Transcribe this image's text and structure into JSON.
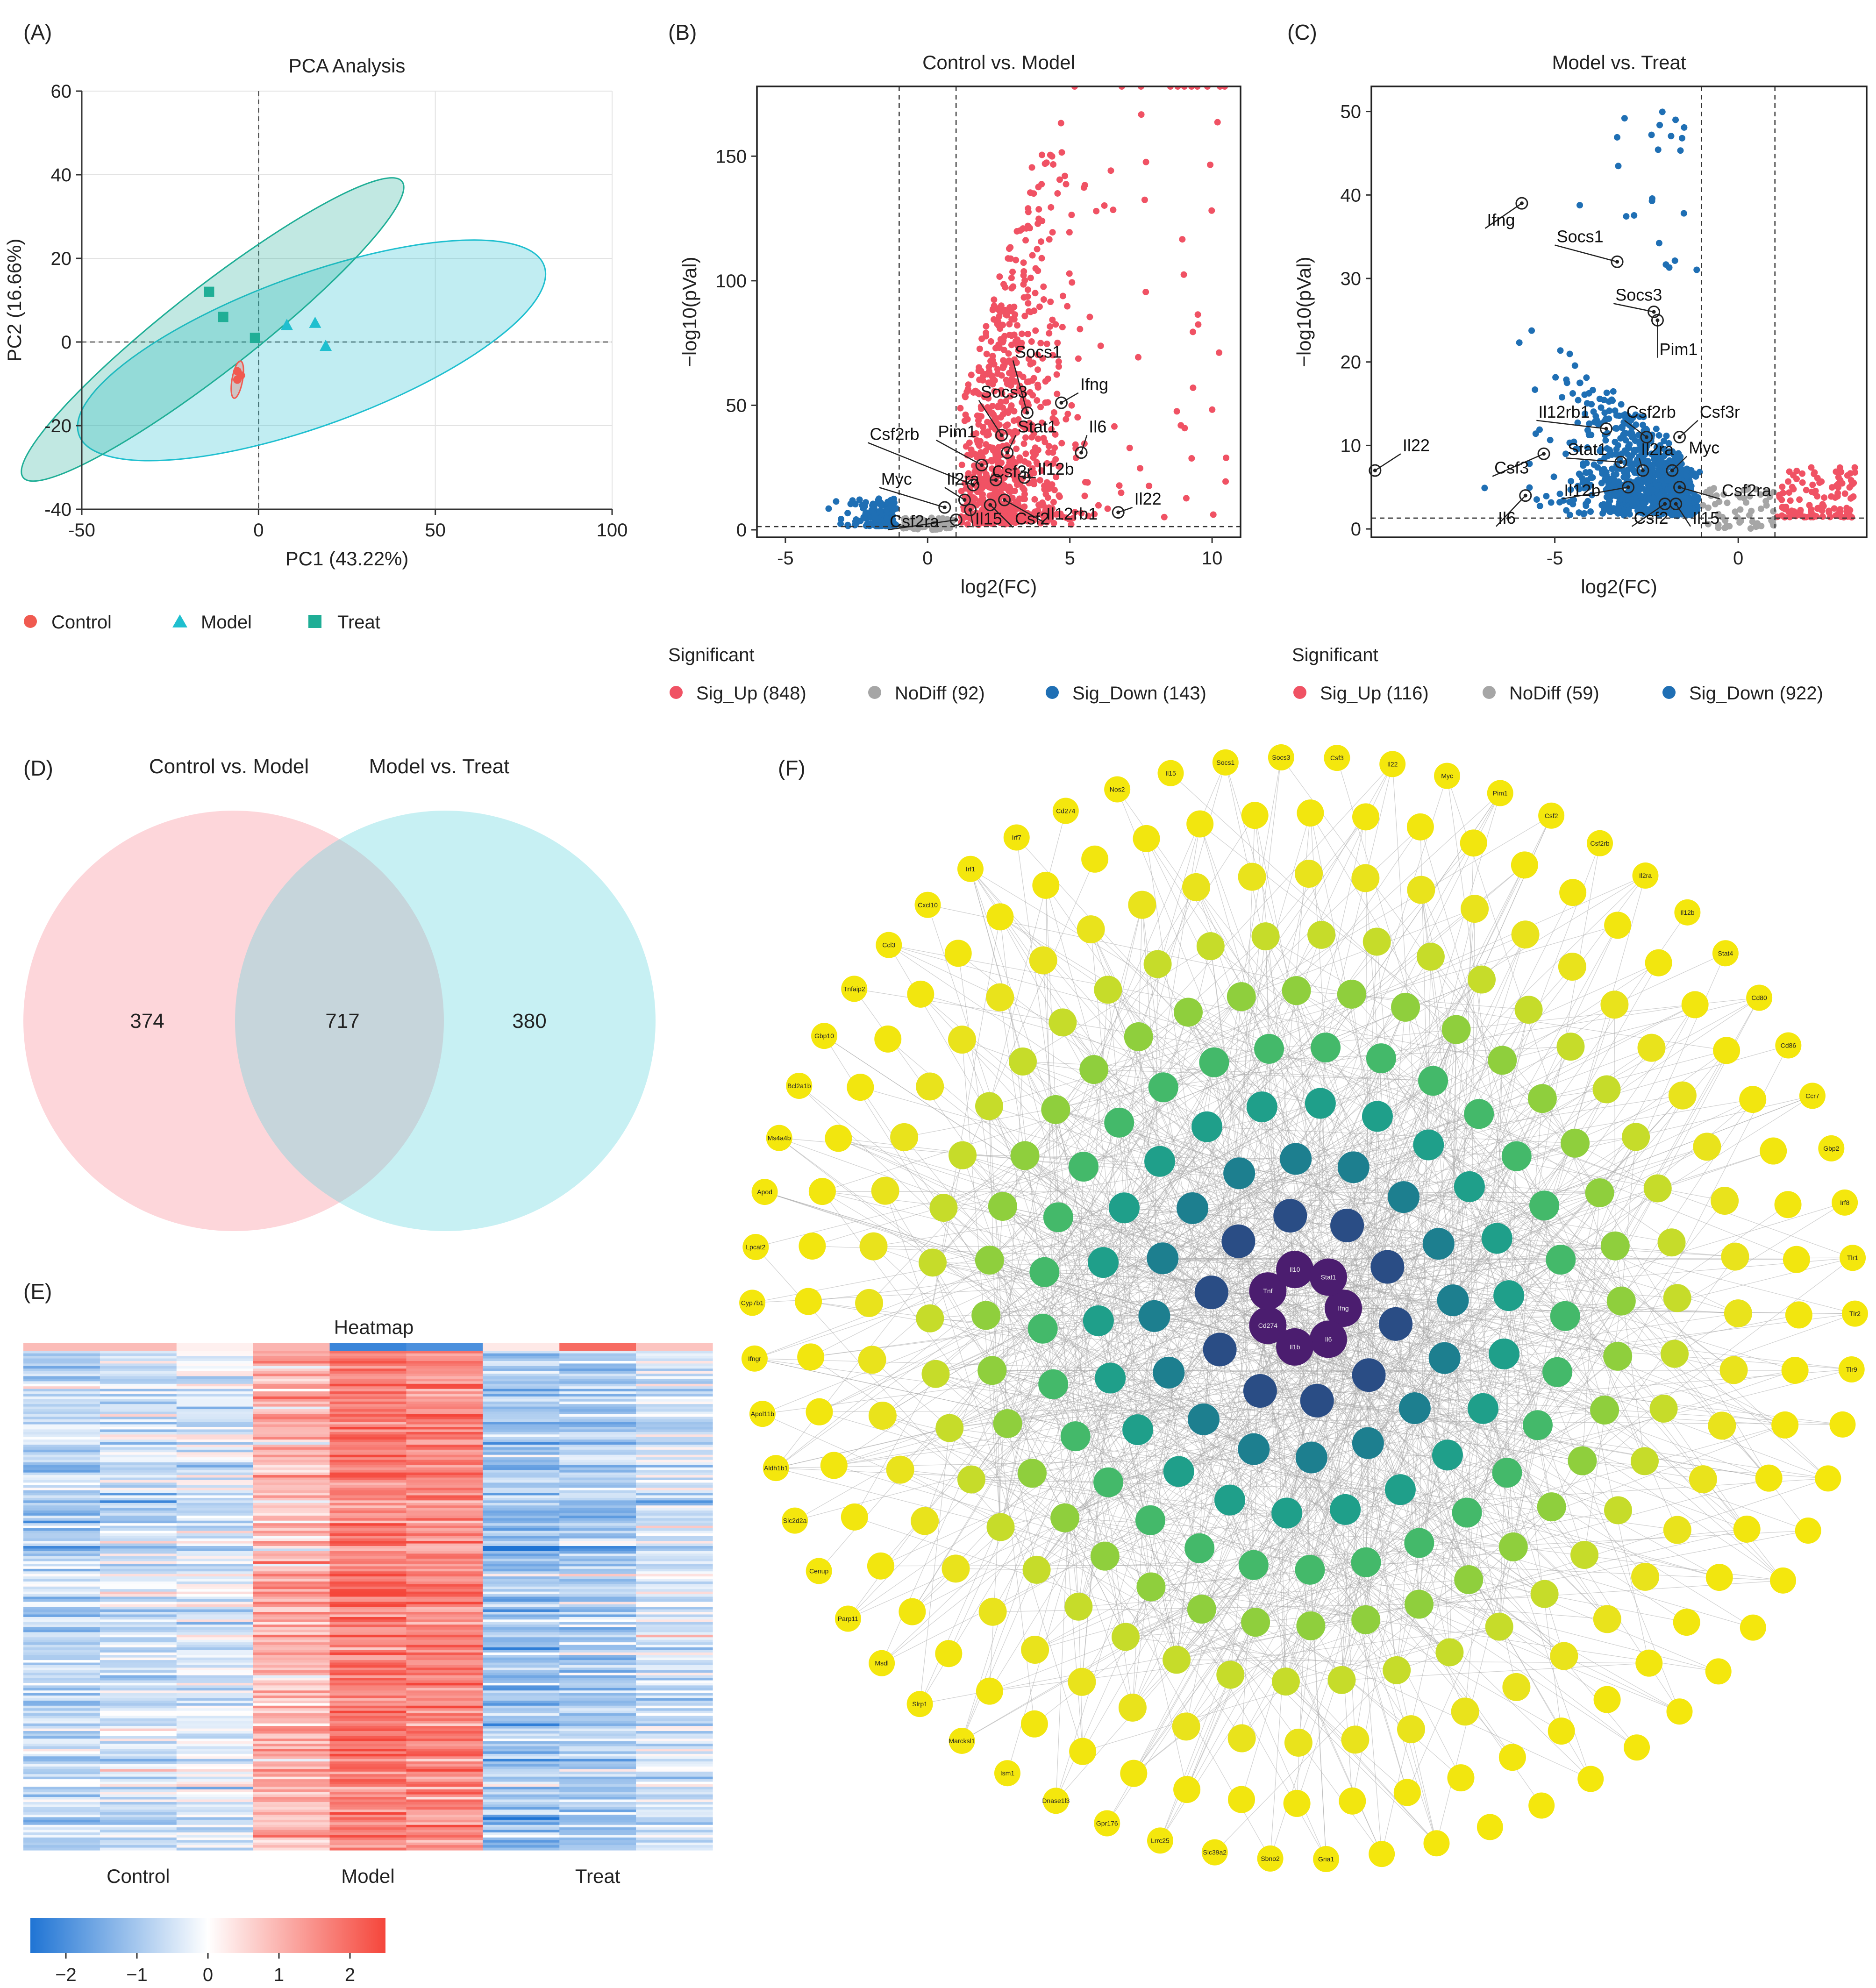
{
  "panels": {
    "A": {
      "label": "(A)",
      "legend": [
        {
          "name": "Control",
          "shape": "circle",
          "color": "#f05a50"
        },
        {
          "name": "Model",
          "shape": "triangle",
          "color": "#1fbfcf"
        },
        {
          "name": "Treat",
          "shape": "square",
          "color": "#1fae96"
        }
      ]
    },
    "B": {
      "label": "(B)",
      "legend_title": "Significant",
      "legend": [
        {
          "name": "Sig_Up (848)",
          "color": "#f05264"
        },
        {
          "name": "NoDiff (92)",
          "color": "#a6a6a6"
        },
        {
          "name": "Sig_Down (143)",
          "color": "#1f6fb4"
        }
      ]
    },
    "C": {
      "label": "(C)",
      "legend_title": "Significant",
      "legend": [
        {
          "name": "Sig_Up (116)",
          "color": "#f05264"
        },
        {
          "name": "NoDiff (59)",
          "color": "#a6a6a6"
        },
        {
          "name": "Sig_Down (922)",
          "color": "#1f6fb4"
        }
      ]
    },
    "D": {
      "label": "(D)"
    },
    "E": {
      "label": "(E)"
    },
    "F": {
      "label": "(F)"
    }
  },
  "chart_data": [
    {
      "id": "pca",
      "type": "scatter",
      "title": "PCA Analysis",
      "xlabel": "PC1 (43.22%)",
      "ylabel": "PC2 (16.66%)",
      "xlim": [
        -50,
        100
      ],
      "ylim": [
        -40,
        60
      ],
      "xticks": [
        -50,
        0,
        50,
        100
      ],
      "yticks": [
        -40,
        -20,
        0,
        20,
        40,
        60
      ],
      "series": [
        {
          "name": "Control",
          "color": "#f05a50",
          "points": [
            [
              -6,
              -7
            ],
            [
              -6,
              -9
            ],
            [
              -5,
              -8
            ]
          ],
          "ellipse": {
            "cx": -6,
            "cy": -9,
            "rx": 1.5,
            "ry": 4.5,
            "angle": 10
          }
        },
        {
          "name": "Model",
          "color": "#1fbfcf",
          "points": [
            [
              8,
              4
            ],
            [
              16,
              4.5
            ],
            [
              19,
              -1
            ]
          ],
          "ellipse": {
            "cx": 15,
            "cy": -2,
            "rx": 70,
            "ry": 18,
            "angle": -20
          }
        },
        {
          "name": "Treat",
          "color": "#1fae96",
          "points": [
            [
              -14,
              12
            ],
            [
              -10,
              6
            ],
            [
              -1,
              1
            ]
          ],
          "ellipse": {
            "cx": -13,
            "cy": 3,
            "rx": 68,
            "ry": 10,
            "angle": -38
          }
        }
      ]
    },
    {
      "id": "volcano_b",
      "type": "scatter",
      "title": "Control vs. Model",
      "xlabel": "log2(FC)",
      "ylabel": "−log10(pVal)",
      "xlim": [
        -6,
        11
      ],
      "ylim": [
        -3,
        178
      ],
      "xticks": [
        -5,
        0,
        5,
        10
      ],
      "yticks": [
        0,
        50,
        100,
        150
      ],
      "vlines": [
        -1,
        1
      ],
      "hline": 1.3,
      "counts": {
        "up": 848,
        "nodiff": 92,
        "down": 143
      },
      "labels": [
        {
          "gene": "Socs1",
          "x": 3.5,
          "y": 47,
          "tx": 3.0,
          "ty": 68
        },
        {
          "gene": "Ifng",
          "x": 4.7,
          "y": 51,
          "tx": 5.3,
          "ty": 55
        },
        {
          "gene": "Socs3",
          "x": 2.6,
          "y": 38,
          "tx": 1.8,
          "ty": 52
        },
        {
          "gene": "Stat1",
          "x": 2.8,
          "y": 31,
          "tx": 3.1,
          "ty": 38
        },
        {
          "gene": "Il6",
          "x": 5.4,
          "y": 31,
          "tx": 5.6,
          "ty": 38
        },
        {
          "gene": "Csf2rb",
          "x": 1.6,
          "y": 18,
          "tx": -2.1,
          "ty": 35
        },
        {
          "gene": "Pim1",
          "x": 1.9,
          "y": 26,
          "tx": 0.3,
          "ty": 36
        },
        {
          "gene": "Csf3r",
          "x": 2.4,
          "y": 20,
          "tx": 2.2,
          "ty": 20
        },
        {
          "gene": "Il12b",
          "x": 3.4,
          "y": 21,
          "tx": 3.8,
          "ty": 21
        },
        {
          "gene": "Il2ra",
          "x": 1.3,
          "y": 12,
          "tx": 0.6,
          "ty": 17
        },
        {
          "gene": "Myc",
          "x": 0.6,
          "y": 9,
          "tx": -1.7,
          "ty": 17
        },
        {
          "gene": "Il12rb1",
          "x": 2.7,
          "y": 12,
          "tx": 4.1,
          "ty": 3
        },
        {
          "gene": "Il22",
          "x": 6.7,
          "y": 7,
          "tx": 7.2,
          "ty": 9
        },
        {
          "gene": "Il15",
          "x": 1.5,
          "y": 8,
          "tx": 1.6,
          "ty": 1
        },
        {
          "gene": "Csf2",
          "x": 2.2,
          "y": 10,
          "tx": 3.0,
          "ty": 1
        },
        {
          "gene": "Csf2ra",
          "x": 1.0,
          "y": 4,
          "tx": -1.4,
          "ty": 0
        }
      ]
    },
    {
      "id": "volcano_c",
      "type": "scatter",
      "title": "Model vs. Treat",
      "xlabel": "log2(FC)",
      "ylabel": "−log10(pVal)",
      "xlim": [
        -10,
        3.5
      ],
      "ylim": [
        -1,
        53
      ],
      "xticks": [
        -5,
        0
      ],
      "yticks": [
        0,
        10,
        20,
        30,
        40,
        50
      ],
      "vlines": [
        -1,
        1
      ],
      "hline": 1.3,
      "counts": {
        "up": 116,
        "nodiff": 59,
        "down": 922
      },
      "labels": [
        {
          "gene": "Ifng",
          "x": -5.9,
          "y": 39,
          "tx": -6.9,
          "ty": 36
        },
        {
          "gene": "Socs1",
          "x": -3.3,
          "y": 32,
          "tx": -5.0,
          "ty": 34
        },
        {
          "gene": "Socs3",
          "x": -2.3,
          "y": 26,
          "tx": -3.4,
          "ty": 27
        },
        {
          "gene": "Pim1",
          "x": -2.2,
          "y": 25,
          "tx": -2.2,
          "ty": 20.5
        },
        {
          "gene": "Il12rb1",
          "x": -3.6,
          "y": 12,
          "tx": -5.5,
          "ty": 13
        },
        {
          "gene": "Csf2rb",
          "x": -2.5,
          "y": 11,
          "tx": -3.1,
          "ty": 13
        },
        {
          "gene": "Csf3r",
          "x": -1.6,
          "y": 11,
          "tx": -1.1,
          "ty": 13
        },
        {
          "gene": "Il22",
          "x": -9.9,
          "y": 7,
          "tx": -9.2,
          "ty": 9
        },
        {
          "gene": "Stat1",
          "x": -3.2,
          "y": 8,
          "tx": -4.7,
          "ty": 8.5
        },
        {
          "gene": "Il2ra",
          "x": -2.6,
          "y": 7,
          "tx": -2.7,
          "ty": 8.5
        },
        {
          "gene": "Myc",
          "x": -1.8,
          "y": 7,
          "tx": -1.4,
          "ty": 8.7
        },
        {
          "gene": "Csf3",
          "x": -5.3,
          "y": 9,
          "tx": -6.7,
          "ty": 6.3
        },
        {
          "gene": "Il12b",
          "x": -3.0,
          "y": 5,
          "tx": -4.8,
          "ty": 3.6
        },
        {
          "gene": "Csf2ra",
          "x": -1.6,
          "y": 5,
          "tx": -0.5,
          "ty": 3.6
        },
        {
          "gene": "Il6",
          "x": -5.8,
          "y": 4,
          "tx": -6.6,
          "ty": 0.3
        },
        {
          "gene": "Csf2",
          "x": -2.0,
          "y": 3,
          "tx": -2.9,
          "ty": 0.3
        },
        {
          "gene": "Il15",
          "x": -1.7,
          "y": 3,
          "tx": -1.3,
          "ty": 0.3
        }
      ]
    },
    {
      "id": "venn",
      "type": "venn",
      "sets": [
        {
          "name": "Control vs. Model",
          "only": 374,
          "color": "#fbb4bb"
        },
        {
          "name": "Model vs. Treat",
          "only": 380,
          "color": "#a4e6ea"
        }
      ],
      "intersection": 717
    },
    {
      "id": "heatmap",
      "type": "heatmap",
      "title": "Heatmap",
      "groups": [
        "Control",
        "Model",
        "Treat"
      ],
      "columns_per_group": 3,
      "rows": 1094,
      "column_means": [
        -0.7,
        -0.55,
        -0.35,
        1.0,
        1.8,
        1.6,
        -1.0,
        -0.9,
        -0.5
      ],
      "colorbar": {
        "min": -2.5,
        "max": 2.5,
        "ticks": [
          -2,
          -1,
          0,
          1,
          2
        ],
        "tick_labels": [
          "−2",
          "−1",
          "0",
          "1",
          "2"
        ],
        "colors": [
          "#1f74d4",
          "#ffffff",
          "#f5463b"
        ]
      }
    },
    {
      "id": "ppi_network",
      "type": "network",
      "center_genes": [
        "Ifng",
        "Il6",
        "Il1b",
        "Cd274",
        "Tnf",
        "Il10",
        "Stat1"
      ],
      "visible_genes": [
        "Gria1",
        "Sbno2",
        "Slc39a2",
        "Lrrc25",
        "Gpr176",
        "Dnase1l3",
        "Ism1",
        "Marcksl1",
        "Slrp1",
        "Msdl",
        "Parp11",
        "Cenup",
        "Slc2d2a",
        "Aldh1b1",
        "Apol11b",
        "Ifngr",
        "Cyp7b1",
        "Lpcat2",
        "Apod",
        "Ms4a4b",
        "Bcl2a1b",
        "Gbp10",
        "Tnfaip2",
        "Ccl3",
        "Cxcl10",
        "Irf1",
        "Irf7",
        "Cd274",
        "Nos2",
        "Il15",
        "Socs1",
        "Socs3",
        "Csf3",
        "Il22",
        "Myc",
        "Pim1",
        "Csf2",
        "Csf2rb",
        "Il2ra",
        "Il12b",
        "Stat4",
        "Cd80",
        "Cd86",
        "Ccr7",
        "Gbp2",
        "Irf8",
        "Tlr1",
        "Tlr2",
        "Tlr9"
      ]
    }
  ]
}
